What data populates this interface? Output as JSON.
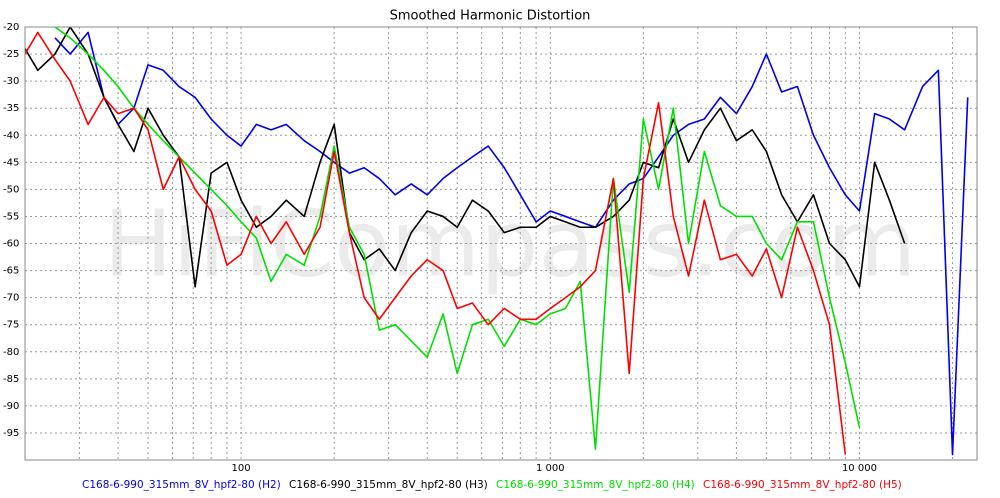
{
  "chart_data": {
    "type": "line",
    "title": "Smoothed Harmonic Distortion",
    "watermark": "HiFiCompass.com",
    "xscale": "log",
    "grid": true,
    "xlim": [
      20,
      24000
    ],
    "ylim": [
      -100,
      -20
    ],
    "yticks": [
      -20,
      -25,
      -30,
      -35,
      -40,
      -45,
      -50,
      -55,
      -60,
      -65,
      -70,
      -75,
      -80,
      -85,
      -90,
      -95
    ],
    "xticks": [
      {
        "value": 100,
        "label": "100"
      },
      {
        "value": 1000,
        "label": "1 000"
      },
      {
        "value": 10000,
        "label": "10 000"
      }
    ],
    "xminorticks": [
      20,
      30,
      40,
      50,
      60,
      70,
      80,
      90,
      200,
      300,
      400,
      500,
      600,
      700,
      800,
      900,
      2000,
      3000,
      4000,
      5000,
      6000,
      7000,
      8000,
      9000,
      20000
    ],
    "x": [
      20,
      22,
      25,
      28,
      32,
      36,
      40,
      45,
      50,
      56,
      63,
      71,
      80,
      90,
      100,
      112,
      125,
      140,
      160,
      180,
      200,
      224,
      250,
      280,
      315,
      355,
      400,
      450,
      500,
      560,
      630,
      710,
      800,
      900,
      1000,
      1120,
      1250,
      1400,
      1600,
      1800,
      2000,
      2240,
      2500,
      2800,
      3150,
      3550,
      4000,
      4500,
      5000,
      5600,
      6300,
      7100,
      8000,
      9000,
      10000,
      11200,
      12500,
      14000,
      16000,
      18000,
      20000,
      22400
    ],
    "series": [
      {
        "name": "C168-6-990_315mm_8V_hpf2-80 (H2)",
        "color": "#0000ee",
        "values": [
          null,
          null,
          -22,
          -25,
          -21,
          -33,
          -38,
          -35,
          -27,
          -28,
          -31,
          -33,
          -37,
          -40,
          -42,
          -38,
          -39,
          -38,
          -41,
          -43,
          -45,
          -47,
          -46,
          -48,
          -51,
          -49,
          -51,
          -48,
          -46,
          -44,
          -42,
          -46,
          -51,
          -56,
          -54,
          -55,
          -56,
          -57,
          -52,
          -49,
          -48,
          -44,
          -40,
          -38,
          -37,
          -33,
          -36,
          -31,
          -25,
          -32,
          -31,
          -40,
          -46,
          -51,
          -54,
          -36,
          -37,
          -39,
          -31,
          -28,
          -99,
          -33
        ]
      },
      {
        "name": "C168-6-990_315mm_8V_hpf2-80 (H3)",
        "color": "#000000",
        "values": [
          -24,
          -28,
          -25,
          -20,
          -25,
          -33,
          -38,
          -43,
          -35,
          -40,
          -44,
          -68,
          -47,
          -45,
          -52,
          -57,
          -55,
          -52,
          -55,
          -45,
          -38,
          -58,
          -63,
          -61,
          -65,
          -58,
          -54,
          -55,
          -57,
          -52,
          -54,
          -58,
          -57,
          -57,
          -55,
          -56,
          -57,
          -57,
          -55,
          -52,
          -45,
          -46,
          -37,
          -45,
          -39,
          -35,
          -41,
          -39,
          -43,
          -51,
          -56,
          -51,
          -60,
          -63,
          -68,
          -45,
          -52,
          -60,
          null,
          null,
          null,
          null
        ]
      },
      {
        "name": "C168-6-990_315mm_8V_hpf2-80 (H4)",
        "color": "#00e000",
        "values": [
          null,
          null,
          -20,
          -22,
          -25,
          -28,
          -31,
          -35,
          -38,
          -41,
          -44,
          -47,
          -50,
          -53,
          -56,
          -59,
          -67,
          -62,
          -64,
          -55,
          -42,
          -57,
          -62,
          -76,
          -75,
          -78,
          -81,
          -73,
          -84,
          -75,
          -74,
          -79,
          -74,
          -75,
          -73,
          -72,
          -67,
          -98,
          -48,
          -69,
          -37,
          -50,
          -35,
          -60,
          -43,
          -53,
          -55,
          -55,
          -60,
          -63,
          -56,
          -56,
          -70,
          -82,
          -94,
          null,
          null,
          null,
          null,
          null,
          null,
          null
        ]
      },
      {
        "name": "C168-6-990_315mm_8V_hpf2-80 (H5)",
        "color": "#ff0000",
        "values": [
          -25,
          -21,
          -26,
          -30,
          -38,
          -33,
          -36,
          -35,
          -39,
          -50,
          -44,
          -50,
          -54,
          -64,
          -62,
          -55,
          -60,
          -56,
          -62,
          -57,
          -43,
          -58,
          -70,
          -74,
          -70,
          -66,
          -63,
          -65,
          -72,
          -71,
          -75,
          -72,
          -74,
          -74,
          -72,
          -70,
          -68,
          -65,
          -48,
          -84,
          -48,
          -34,
          -55,
          -66,
          -52,
          -63,
          -62,
          -66,
          -61,
          -70,
          -57,
          -65,
          -75,
          -99,
          null,
          null,
          null,
          null,
          null,
          null,
          null,
          null
        ]
      }
    ]
  }
}
